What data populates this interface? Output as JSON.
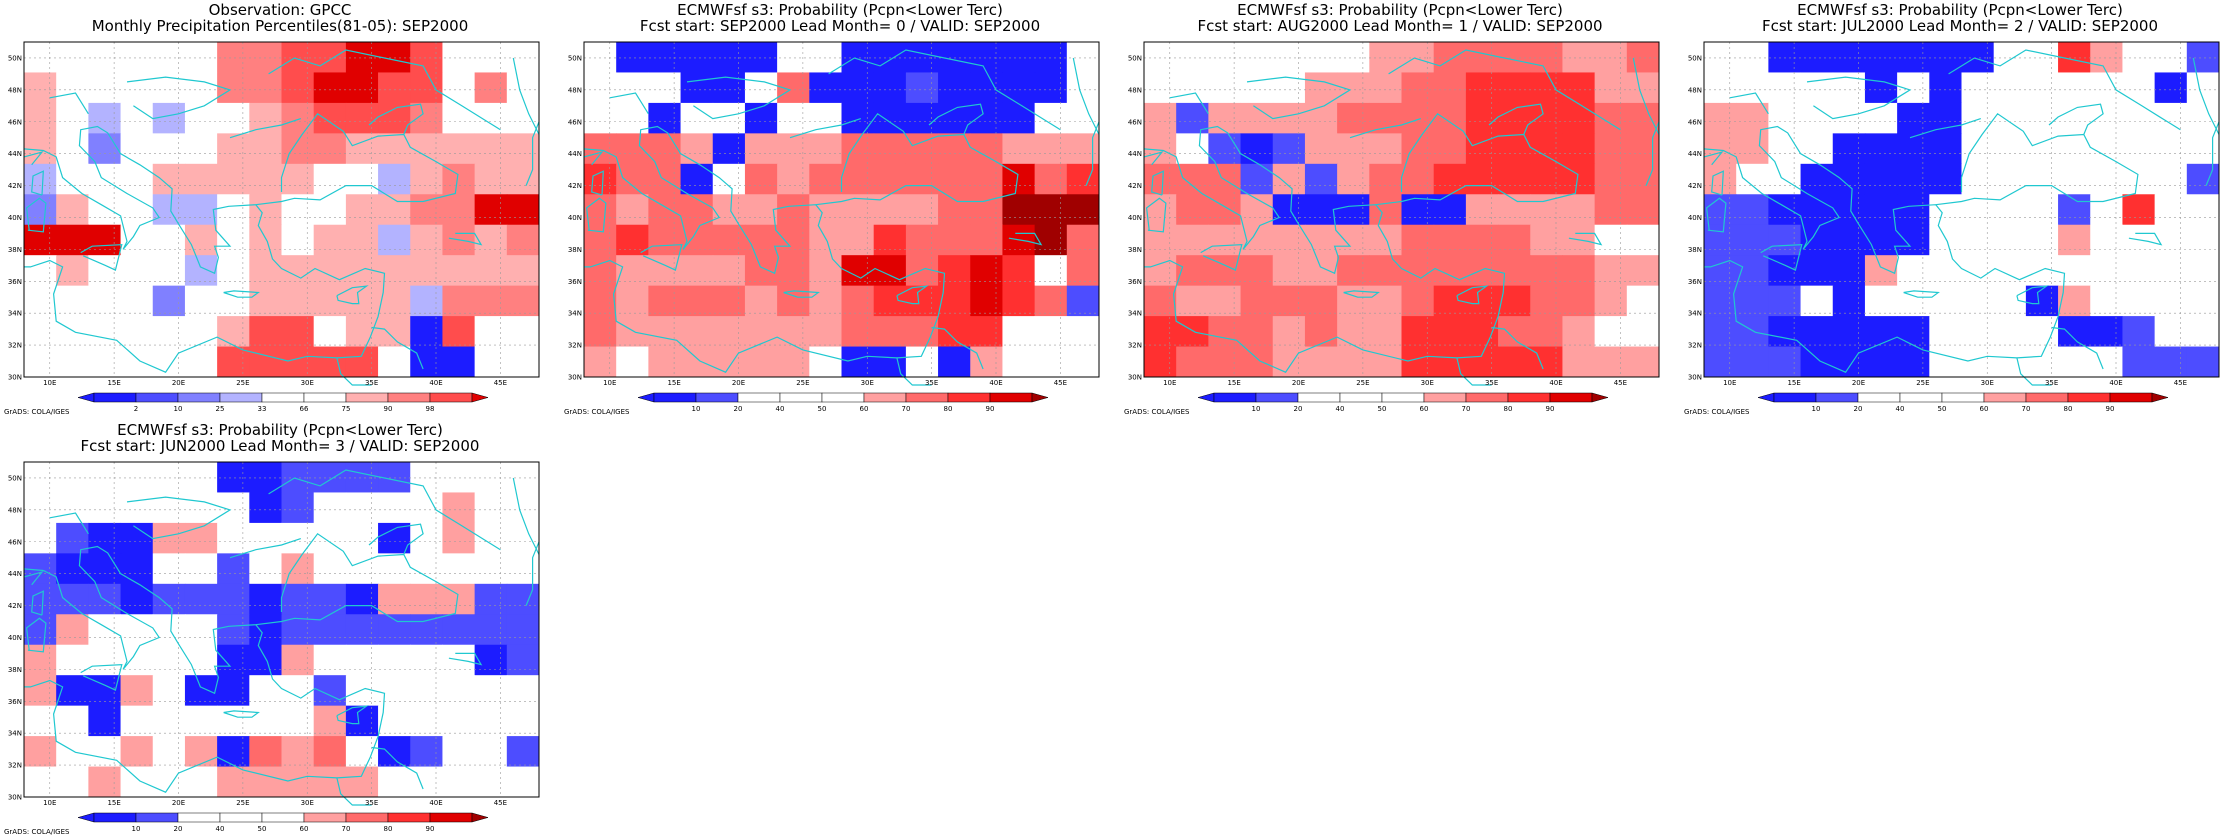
{
  "colors": {
    "scale_10": [
      "#1c1cff",
      "#4d4dff",
      "#ffffff",
      "#ffffff",
      "#ffffff",
      "#ffa0a0",
      "#ff6a6a",
      "#ff3030",
      "#e00000",
      "#a00000"
    ],
    "scale_obs": [
      "#1c1cff",
      "#4d4dff",
      "#8080ff",
      "#b3b3ff",
      "#ffffff",
      "#ffffff",
      "#ffb0b0",
      "#ff8080",
      "#ff4d4d",
      "#e00000"
    ],
    "coast": "#20c8d0"
  },
  "grads_label": "GrADS: COLA/IGES",
  "chart_data": [
    {
      "type": "heatmap",
      "title_line1": "Observation: GPCC",
      "title_line2": "Monthly Precipitation Percentiles(81-05): SEP2000",
      "x_ticks": [
        "10E",
        "15E",
        "20E",
        "25E",
        "30E",
        "35E",
        "40E",
        "45E"
      ],
      "y_ticks": [
        "30N",
        "32N",
        "34N",
        "36N",
        "38N",
        "40N",
        "42N",
        "44N",
        "46N",
        "48N",
        "50N"
      ],
      "colorbar_labels": [
        "2",
        "10",
        "25",
        "33",
        "66",
        "75",
        "90",
        "98"
      ],
      "palette": "scale_obs",
      "rows_north_to_south": [
        "4444457788998444",
        "6454447789988474",
        "6434344678887454",
        "6424446677666666",
        "3444666664436766",
        "2644334644667799",
        "9994464646636767",
        "4644434666666666",
        "4444244666663777",
        "4444446884660844",
        "4444448888840044"
      ]
    },
    {
      "type": "heatmap",
      "title_line1": "ECMWFsf s3: Probability (Pcpn<Lower Terc)",
      "title_line2": "Fcst start: SEP2000   Lead Month= 0 / VALID: SEP2000",
      "x_ticks": [
        "10E",
        "15E",
        "20E",
        "25E",
        "30E",
        "35E",
        "40E",
        "45E"
      ],
      "y_ticks": [
        "30N",
        "32N",
        "34N",
        "36N",
        "38N",
        "40N",
        "42N",
        "44N",
        "46N",
        "48N",
        "50N"
      ],
      "colorbar_labels": [
        "10",
        "20",
        "40",
        "50",
        "60",
        "70",
        "80",
        "90"
      ],
      "palette": "scale_10",
      "rows_north_to_south": [
        "2000004200000004",
        "4420046000100004",
        "4404404400000044",
        "6665055566666555",
        "7660465666666867",
        "6566556555566999",
        "6766666557666896",
        "6555566588678746",
        "6566656567778761",
        "6555555566677422",
        "5455555400405444"
      ]
    },
    {
      "type": "heatmap",
      "title_line1": "ECMWFsf s3: Probability (Pcpn<Lower Terc)",
      "title_line2": "Fcst start: AUG2000   Lead Month= 1 / VALID: SEP2000",
      "x_ticks": [
        "10E",
        "15E",
        "20E",
        "25E",
        "30E",
        "35E",
        "40E",
        "45E"
      ],
      "y_ticks": [
        "30N",
        "32N",
        "34N",
        "36N",
        "38N",
        "40N",
        "42N",
        "44N",
        "46N",
        "48N",
        "50N"
      ],
      "colorbar_labels": [
        "10",
        "20",
        "40",
        "50",
        "60",
        "70",
        "80",
        "90"
      ],
      "palette": "scale_10",
      "rows_north_to_south": [
        "4444444556666556",
        "4444455566777755",
        "5155556666777766",
        "5210155566777766",
        "6661515667777766",
        "5665000600555566",
        "5555555566665544",
        "5666556666666655",
        "6556665567776654",
        "7766565577766544",
        "7666555577777555"
      ]
    },
    {
      "type": "heatmap",
      "title_line1": "ECMWFsf s3: Probability (Pcpn<Lower Terc)",
      "title_line2": "Fcst start: JUL2000   Lead Month= 2 / VALID: SEP2000",
      "x_ticks": [
        "10E",
        "15E",
        "20E",
        "25E",
        "30E",
        "35E",
        "40E",
        "45E"
      ],
      "y_ticks": [
        "30N",
        "32N",
        "34N",
        "36N",
        "38N",
        "40N",
        "42N",
        "44N",
        "46N",
        "48N",
        "50N"
      ],
      "colorbar_labels": [
        "10",
        "20",
        "40",
        "50",
        "60",
        "70",
        "80",
        "90"
      ],
      "palette": "scale_10",
      "rows_north_to_south": [
        "4400000004475441",
        "4444404044444404",
        "5544440044444444",
        "5544000044444444",
        "5440000044444441",
        "1100000444414744",
        "1110000444454444",
        "1100054444444444",
        "1114044444054444",
        "1100000444400144",
        "1110000444444111"
      ]
    },
    {
      "type": "heatmap",
      "title_line1": "ECMWFsf s3: Probability (Pcpn<Lower Terc)",
      "title_line2": "Fcst start: JUN2000   Lead Month= 3 / VALID: SEP2000",
      "x_ticks": [
        "10E",
        "15E",
        "20E",
        "25E",
        "30E",
        "35E",
        "40E",
        "45E"
      ],
      "y_ticks": [
        "30N",
        "32N",
        "34N",
        "36N",
        "38N",
        "40N",
        "42N",
        "44N",
        "46N",
        "48N",
        "50N"
      ],
      "colorbar_labels": [
        "10",
        "20",
        "40",
        "50",
        "60",
        "70",
        "80",
        "90"
      ],
      "palette": "scale_10",
      "rows_north_to_south": [
        "4444440011114444",
        "4444444014444544",
        "4100554444404544",
        "1000441454444444",
        "1110111011055511",
        "1544441011111111",
        "5444440054444401",
        "5005400441444444",
        "4404444445044444",
        "5445450656401441",
        "4454445555544444"
      ]
    }
  ]
}
